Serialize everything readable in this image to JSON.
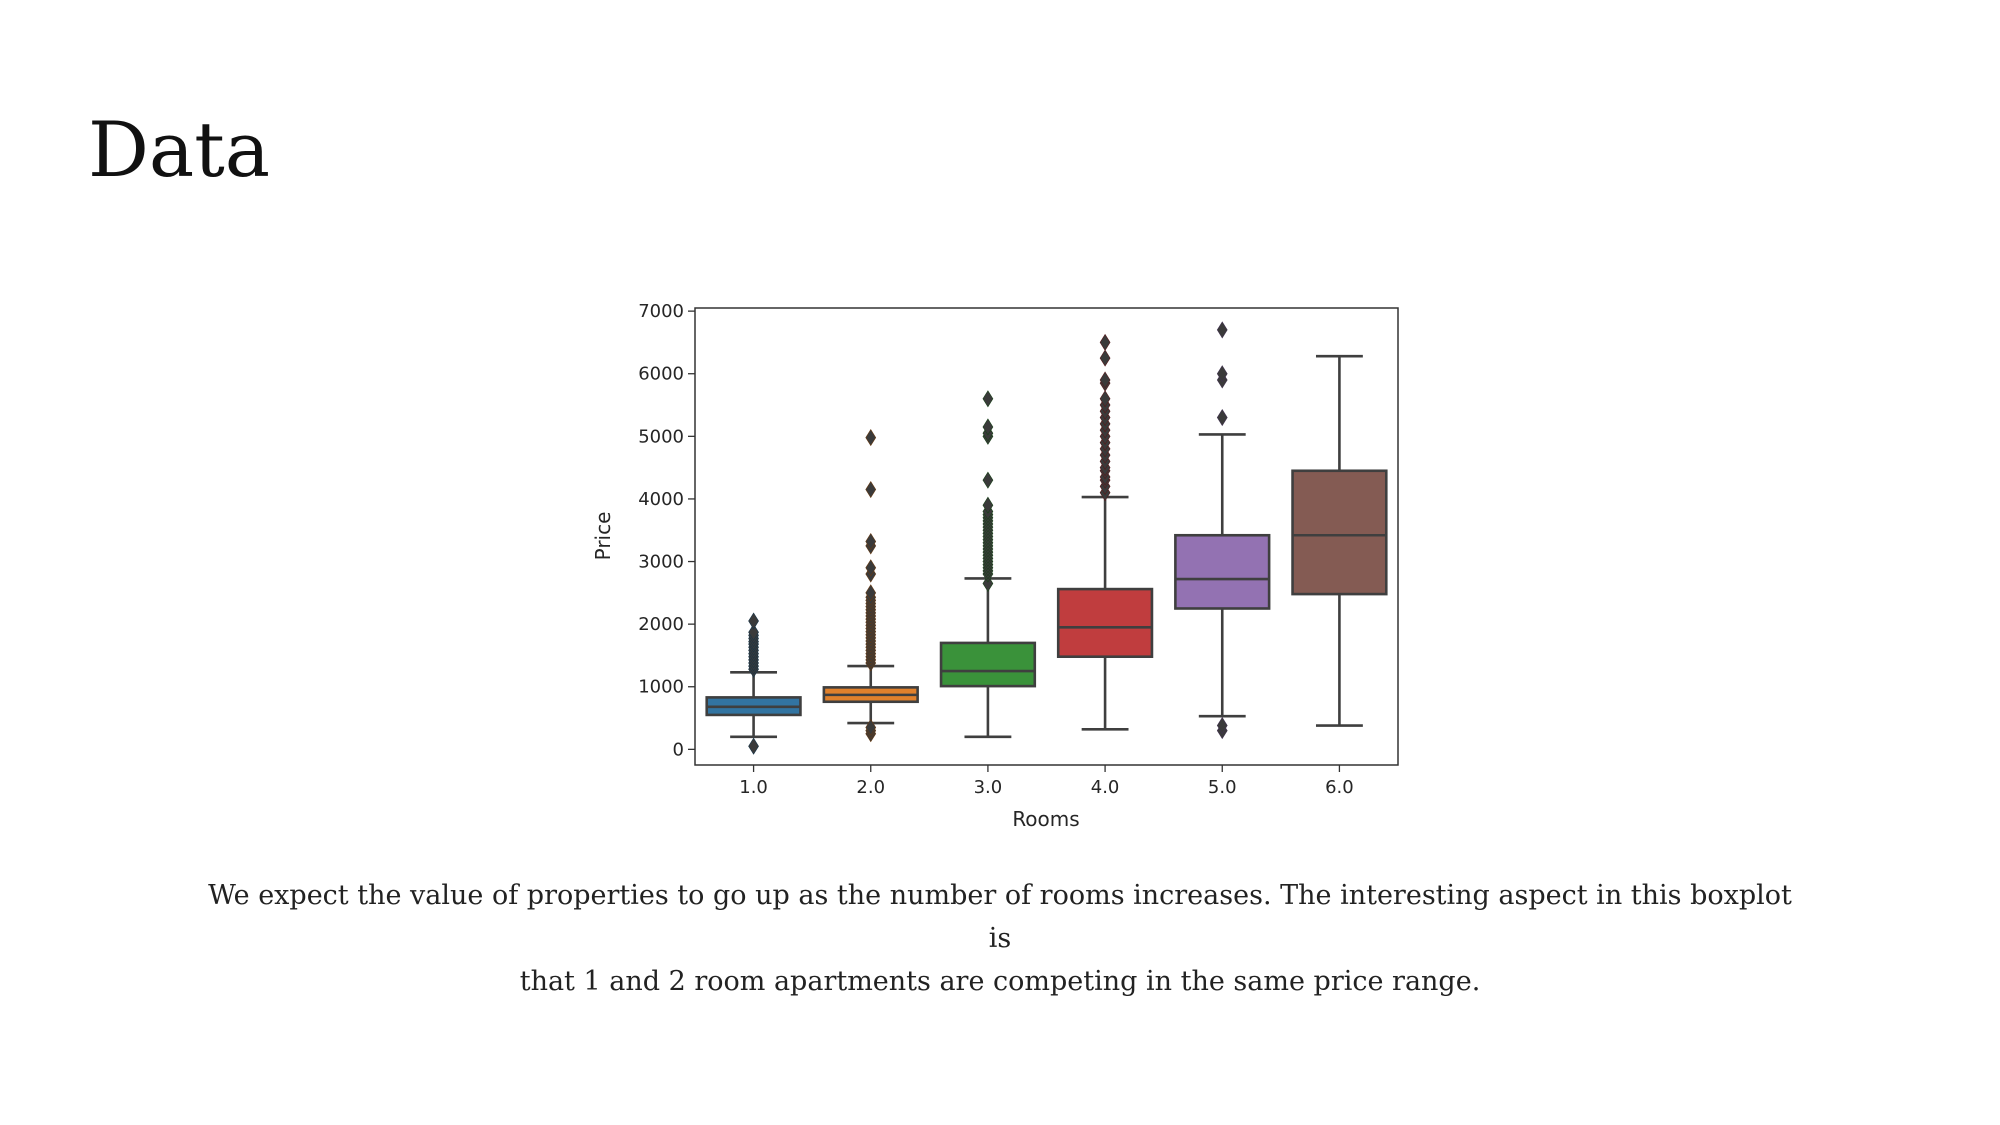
{
  "slide": {
    "title": "Data",
    "caption_line1": "We expect the value of properties to go up as the number of rooms increases. The interesting aspect in this boxplot is",
    "caption_line2": "that 1 and 2 room apartments are competing in the same price range."
  },
  "chart_data": {
    "type": "boxplot",
    "xlabel": "Rooms",
    "ylabel": "Price",
    "ylim": [
      -250,
      7050
    ],
    "yticks": [
      0,
      1000,
      2000,
      3000,
      4000,
      5000,
      6000,
      7000
    ],
    "grid": false,
    "categories": [
      "1.0",
      "2.0",
      "3.0",
      "4.0",
      "5.0",
      "6.0"
    ],
    "boxes": [
      {
        "category": "1.0",
        "color": "#3274a1",
        "whisker_low": 200,
        "q1": 550,
        "median": 680,
        "q3": 830,
        "whisker_high": 1230,
        "outliers": [
          50,
          1280,
          1330,
          1380,
          1430,
          1480,
          1530,
          1580,
          1630,
          1680,
          1720,
          1770,
          1820,
          1870,
          2050
        ]
      },
      {
        "category": "2.0",
        "color": "#e1812c",
        "whisker_low": 420,
        "q1": 760,
        "median": 870,
        "q3": 990,
        "whisker_high": 1330,
        "outliers": [
          250,
          300,
          350,
          1380,
          1430,
          1480,
          1530,
          1580,
          1630,
          1680,
          1730,
          1780,
          1830,
          1880,
          1930,
          1980,
          2030,
          2080,
          2130,
          2180,
          2230,
          2280,
          2330,
          2380,
          2430,
          2500,
          2800,
          2900,
          3250,
          3320,
          4150,
          4980
        ]
      },
      {
        "category": "3.0",
        "color": "#3a923a",
        "whisker_low": 200,
        "q1": 1010,
        "median": 1250,
        "q3": 1700,
        "whisker_high": 2730,
        "outliers": [
          2650,
          2800,
          2850,
          2900,
          2950,
          3000,
          3050,
          3100,
          3150,
          3200,
          3250,
          3300,
          3350,
          3400,
          3450,
          3500,
          3550,
          3600,
          3650,
          3700,
          3750,
          3800,
          3900,
          4300,
          5000,
          5050,
          5150,
          5600
        ]
      },
      {
        "category": "4.0",
        "color": "#c03d3e",
        "whisker_low": 320,
        "q1": 1480,
        "median": 1950,
        "q3": 2560,
        "whisker_high": 4030,
        "outliers": [
          4100,
          4200,
          4300,
          4350,
          4450,
          4500,
          4600,
          4700,
          4800,
          4900,
          5000,
          5100,
          5200,
          5300,
          5400,
          5500,
          5600,
          5850,
          5900,
          6250,
          6500
        ]
      },
      {
        "category": "5.0",
        "color": "#9372b2",
        "whisker_low": 530,
        "q1": 2250,
        "median": 2720,
        "q3": 3420,
        "whisker_high": 5030,
        "outliers": [
          300,
          380,
          5300,
          5900,
          6000,
          6700
        ]
      },
      {
        "category": "6.0",
        "color": "#845b53",
        "whisker_low": 380,
        "q1": 2480,
        "median": 3420,
        "q3": 4450,
        "whisker_high": 6280,
        "outliers": []
      }
    ]
  }
}
